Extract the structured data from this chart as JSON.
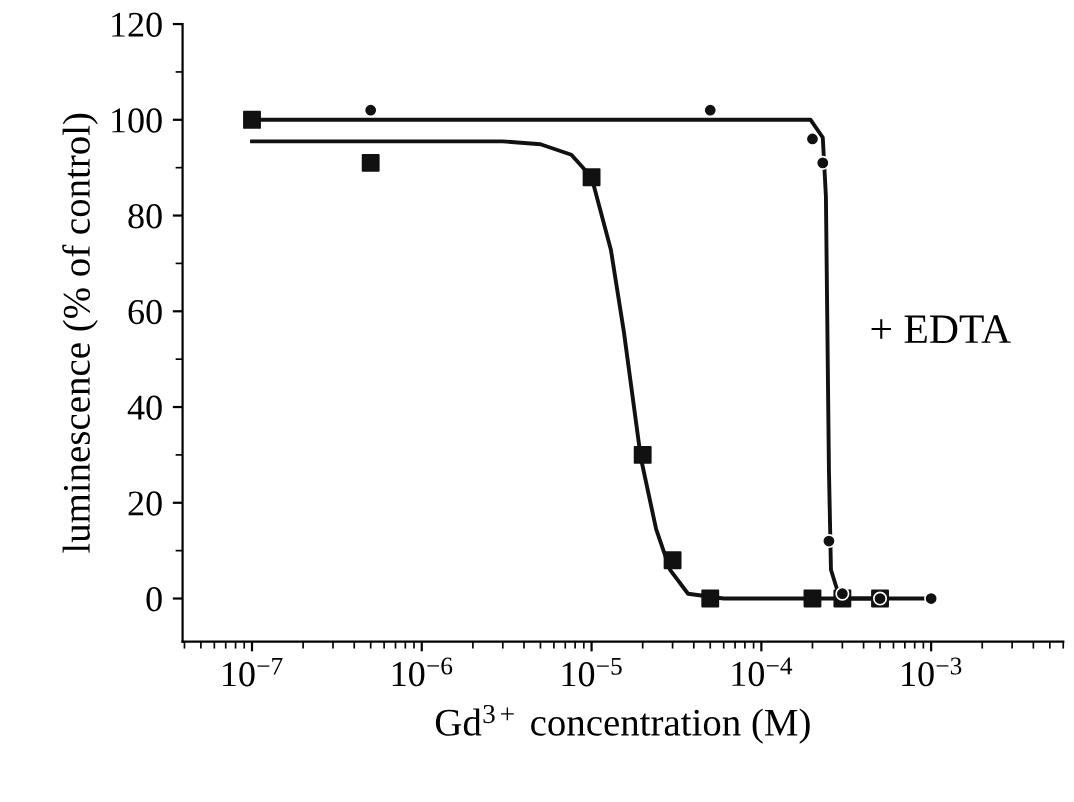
{
  "chart_data": {
    "type": "scatter",
    "xlabel": "Gd$^{3+}$ concentration (M)",
    "ylabel": "luminescence (% of control)",
    "log": "x",
    "xlim": [
      3.9e-08,
      0.006
    ],
    "ylim": [
      -9,
      120
    ],
    "xticks": [
      {
        "value": 1e-07,
        "label": "10$^{−7}$"
      },
      {
        "value": 1e-06,
        "label": "10$^{−6}$"
      },
      {
        "value": 1e-05,
        "label": "10$^{−5}$"
      },
      {
        "value": 0.0001,
        "label": "10$^{−4}$"
      },
      {
        "value": 0.001,
        "label": "10$^{−3}$"
      }
    ],
    "yticks": [
      0,
      20,
      40,
      60,
      80,
      100,
      120
    ],
    "annotations": [
      "+ EDTA"
    ],
    "series": [
      {
        "marker": "square",
        "color": "#111111",
        "x": [
          1e-07,
          5e-07,
          1e-05,
          2e-05,
          3e-05,
          5e-05,
          0.0002,
          0.0003,
          0.0005
        ],
        "values": [
          100,
          91,
          88,
          30,
          8,
          0,
          0,
          0,
          0
        ]
      },
      {
        "marker": "circle",
        "color": "#111111",
        "x": [
          5e-07,
          5e-05,
          0.0002,
          0.00023,
          0.00025,
          0.0003,
          0.0005,
          0.001
        ],
        "values": [
          102,
          102,
          96,
          91,
          12,
          1,
          0,
          0
        ]
      },
      {
        "type": "line",
        "marker": "none",
        "color": "#111111",
        "x": [
          1e-07,
          3e-06,
          5e-06,
          7.6e-06,
          1e-05,
          1.3e-05,
          1.55e-05,
          1.95e-05,
          2.4e-05,
          2.9e-05,
          3.7e-05,
          6e-05,
          0.0005
        ],
        "values": [
          95.5,
          95.5,
          94.9,
          92.7,
          88,
          72.8,
          55.7,
          29.4,
          14.5,
          6,
          1,
          0,
          0
        ]
      },
      {
        "type": "line",
        "marker": "none",
        "color": "#111111",
        "x": [
          1e-07,
          0.000195,
          0.00023,
          0.00024,
          0.00025,
          0.000257,
          0.00029,
          0.001
        ],
        "values": [
          100,
          100,
          96.3,
          84,
          27,
          6,
          0,
          0
        ]
      }
    ]
  }
}
